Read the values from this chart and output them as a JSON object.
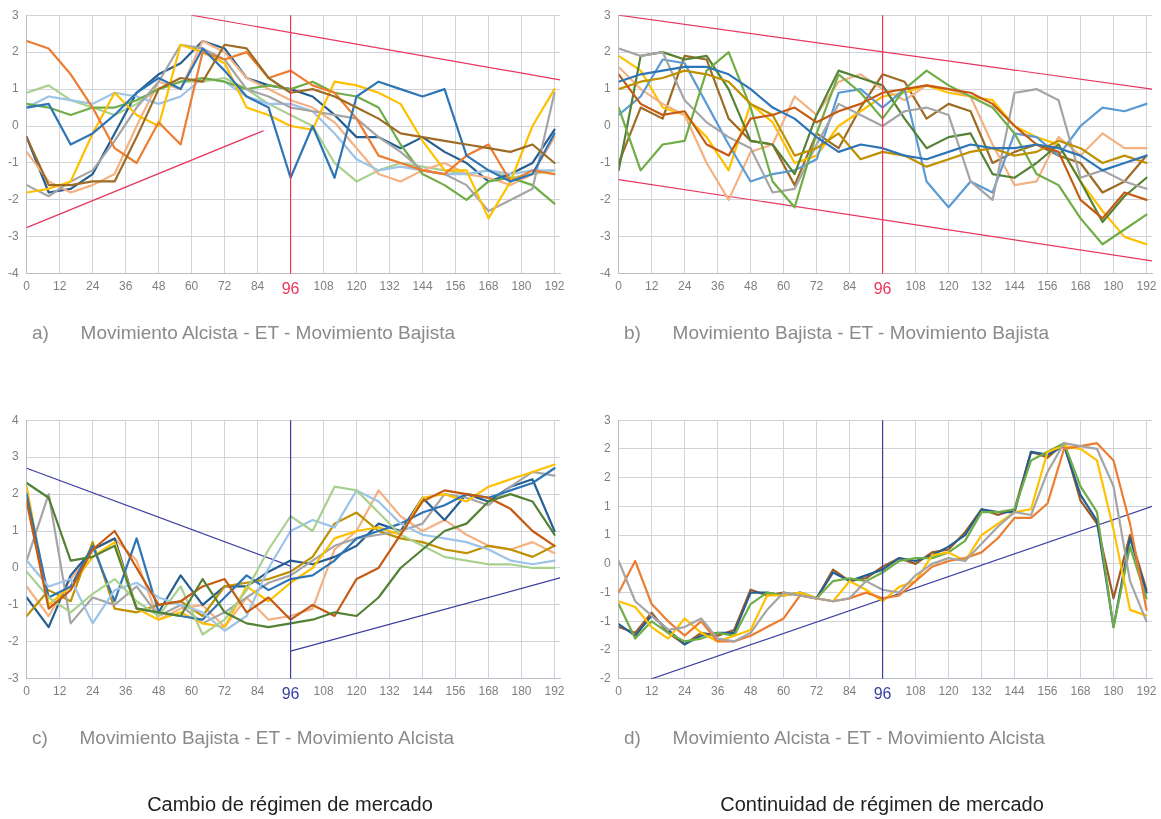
{
  "chart_data": [
    {
      "type": "line",
      "xlabel": "a)      Movimiento Alcista - ET - Movimiento Bajista",
      "legend": false,
      "grid": true,
      "marker": "none",
      "x": [
        0,
        8,
        16,
        24,
        32,
        40,
        48,
        56,
        64,
        72,
        80,
        88,
        96,
        104,
        112,
        120,
        128,
        136,
        144,
        152,
        160,
        168,
        176,
        184,
        192
      ],
      "xlim": [
        0,
        194
      ],
      "ylim": [
        -4,
        3
      ],
      "xticks": [
        0,
        12,
        24,
        36,
        48,
        60,
        72,
        84,
        96,
        108,
        120,
        132,
        144,
        156,
        168,
        180,
        192
      ],
      "yticks": [
        -4,
        -3,
        -2,
        -1,
        0,
        1,
        2,
        3
      ],
      "ref_lines": [
        {
          "axis": "x",
          "value": 96,
          "color": "#e8365d"
        }
      ],
      "series": [
        {
          "color": "#9e6b25",
          "values": [
            -0.3,
            -1.6,
            -1.6,
            -1.5,
            -1.5,
            -0.3,
            1.0,
            1.3,
            1.2,
            2.2,
            2.1,
            1.3,
            0.9,
            1.0,
            0.8,
            0.5,
            0.2,
            -0.2,
            -0.3,
            -0.4,
            -0.5,
            -0.6,
            -0.7,
            -0.5,
            -1.0
          ]
        },
        {
          "color": "#2e75b6",
          "values": [
            0.5,
            0.6,
            -0.5,
            -0.2,
            0.3,
            0.9,
            1.3,
            1.0,
            2.1,
            1.5,
            0.8,
            0.5,
            -1.4,
            0,
            -1.4,
            0.8,
            1.2,
            1.0,
            0.8,
            1.0,
            -0.8,
            -1.2,
            -1.5,
            -1.3,
            -0.2
          ]
        },
        {
          "color": "#ed7d31",
          "values": [
            2.3,
            2.1,
            1.4,
            0.5,
            -0.6,
            -1.0,
            0.1,
            -0.5,
            2.0,
            1.8,
            2.0,
            1.3,
            1.5,
            1.1,
            0.9,
            0.2,
            -0.8,
            -1.0,
            -1.2,
            -1.3,
            -0.8,
            -0.5,
            -1.5,
            -1.2,
            -1.3
          ]
        },
        {
          "color": "#ffc000",
          "values": [
            -1.8,
            -1.7,
            -1.5,
            -0.2,
            0.9,
            0.3,
            0.0,
            2.2,
            2.0,
            1.7,
            0.5,
            0.3,
            0.0,
            -0.1,
            1.2,
            1.1,
            0.9,
            0.6,
            -0.4,
            -1.2,
            -1.2,
            -2.5,
            -1.5,
            0.0,
            1.0
          ]
        },
        {
          "color": "#a5a5a5",
          "values": [
            -1.6,
            -1.9,
            -1.5,
            -1.2,
            -0.4,
            0.5,
            1.2,
            2.2,
            2.1,
            1.8,
            1.0,
            0.8,
            0.5,
            0.4,
            0.3,
            0.2,
            -0.3,
            -0.7,
            -1.2,
            -1.3,
            -1.6,
            -2.3,
            -2.0,
            -1.7,
            0.9
          ]
        },
        {
          "color": "#70ad47",
          "values": [
            0.6,
            0.5,
            0.3,
            0.5,
            0.5,
            0.7,
            1.0,
            1.2,
            1.3,
            1.2,
            1.0,
            1.1,
            1.0,
            1.2,
            0.9,
            0.8,
            0.5,
            -0.5,
            -1.3,
            -1.6,
            -2.0,
            -1.5,
            -1.4,
            -1.6,
            -2.1
          ]
        },
        {
          "color": "#9dc3e6",
          "values": [
            0.5,
            0.8,
            0.7,
            0.6,
            0.9,
            0.8,
            0.6,
            0.8,
            1.3,
            1.2,
            0.8,
            0.6,
            0.6,
            0.4,
            -0.2,
            -0.9,
            -1.2,
            -1.1,
            -1.2,
            -1.3,
            -1.3,
            -1.2,
            -1.3,
            -1.2,
            -1.2
          ]
        },
        {
          "color": "#f4b183",
          "values": [
            -0.7,
            -1.5,
            -1.8,
            -1.6,
            -1.3,
            0.0,
            1.2,
            1.0,
            2.3,
            2.0,
            1.3,
            1.0,
            0.7,
            0.5,
            0.1,
            -0.6,
            -1.3,
            -1.5,
            -1.2,
            -1.0,
            -1.3,
            -1.4,
            -1.6,
            -1.3,
            -0.3
          ]
        },
        {
          "color": "#255e91",
          "values": [
            -0.3,
            -1.8,
            -1.7,
            -1.3,
            -0.2,
            0.9,
            1.4,
            1.7,
            2.3,
            2.1,
            1.3,
            1.1,
            1.0,
            0.8,
            0.3,
            -0.3,
            -0.3,
            -0.6,
            -0.3,
            -0.7,
            -1.0,
            -1.5,
            -1.3,
            -1.0,
            -0.1
          ]
        },
        {
          "color": "#a9d18e",
          "values": [
            0.9,
            1.1,
            0.7,
            0.5,
            0.3,
            0.6,
            1.0,
            1.2,
            1.2,
            1.3,
            1.0,
            0.6,
            0.3,
            0.0,
            -1.0,
            -1.5,
            -1.2,
            -1.0,
            -1.1,
            -1.2,
            -1.3,
            -1.2,
            -1.4,
            -1.3,
            -1.2
          ]
        },
        {
          "type": "line",
          "color": "#e8365d",
          "x": [
            60,
            194
          ],
          "values": [
            3,
            1.25
          ]
        },
        {
          "type": "line",
          "color": "#e8365d",
          "x": [
            0,
            86
          ],
          "values": [
            -2.75,
            -0.13
          ]
        }
      ]
    },
    {
      "type": "line",
      "xlabel": "b)      Movimiento Bajista - ET - Movimiento Bajista",
      "legend": false,
      "grid": true,
      "marker": "none",
      "x": [
        0,
        8,
        16,
        24,
        32,
        40,
        48,
        56,
        64,
        72,
        80,
        88,
        96,
        104,
        112,
        120,
        128,
        136,
        144,
        152,
        160,
        168,
        176,
        184,
        192
      ],
      "xlim": [
        0,
        194
      ],
      "ylim": [
        -4,
        3
      ],
      "xticks": [
        0,
        12,
        24,
        36,
        48,
        60,
        72,
        84,
        96,
        108,
        120,
        132,
        144,
        156,
        168,
        180,
        192
      ],
      "yticks": [
        -4,
        -3,
        -2,
        -1,
        0,
        1,
        2,
        3
      ],
      "ref_lines": [
        {
          "axis": "x",
          "value": 96,
          "color": "#e8365d"
        }
      ],
      "series": [
        {
          "color": "#2e75b6",
          "values": [
            1.2,
            1.4,
            1.5,
            1.6,
            1.6,
            1.4,
            1.0,
            0.5,
            0.2,
            -0.3,
            -0.7,
            -0.5,
            -0.6,
            -0.8,
            -0.9,
            -0.7,
            -0.5,
            -0.6,
            -0.6,
            -0.5,
            -0.6,
            -0.8,
            -1.2,
            -1.0,
            -0.8
          ]
        },
        {
          "color": "#c55a11",
          "values": [
            1.4,
            0.6,
            0.3,
            0.4,
            -0.5,
            -0.8,
            0.2,
            0.3,
            0.5,
            0.1,
            0.4,
            0.6,
            0.9,
            1.0,
            1.1,
            1.0,
            0.9,
            0.6,
            0.0,
            -0.5,
            -0.7,
            -2.0,
            -2.5,
            -1.8,
            -2.0
          ]
        },
        {
          "color": "#bf9000",
          "values": [
            1.0,
            1.2,
            1.3,
            1.5,
            1.4,
            1.2,
            0.6,
            0.3,
            -0.8,
            -0.6,
            -0.2,
            -0.9,
            -0.7,
            -0.8,
            -1.1,
            -0.9,
            -0.7,
            -0.6,
            -0.8,
            -0.7,
            -0.4,
            -0.6,
            -1.0,
            -0.8,
            -1.0
          ]
        },
        {
          "color": "#70ad47",
          "values": [
            0.5,
            -1.2,
            -0.5,
            -0.4,
            1.5,
            2.0,
            0.5,
            -1.5,
            -2.2,
            -0.2,
            1.4,
            0.9,
            0.2,
            1.0,
            1.5,
            1.1,
            0.8,
            0.5,
            -0.2,
            -1.3,
            -1.6,
            -2.5,
            -3.2,
            -2.8,
            -2.4
          ]
        },
        {
          "color": "#a5a5a5",
          "values": [
            2.1,
            1.9,
            2.0,
            0.7,
            0.1,
            -0.3,
            -0.6,
            -1.8,
            -1.7,
            -0.5,
            0.6,
            0.3,
            0.0,
            0.4,
            0.5,
            0.3,
            -1.5,
            -2.0,
            0.9,
            1.0,
            0.7,
            -1.4,
            -1.2,
            -1.5,
            -1.7
          ]
        },
        {
          "color": "#548235",
          "values": [
            -1.2,
            1.9,
            2.0,
            1.8,
            1.9,
            1.0,
            -0.4,
            -0.5,
            -1.3,
            0.3,
            1.5,
            1.3,
            1.1,
            0.2,
            -0.6,
            -0.3,
            -0.2,
            -1.3,
            -1.4,
            -1.0,
            -0.5,
            -1.5,
            -2.6,
            -1.9,
            -1.4
          ]
        },
        {
          "color": "#5b9bd5",
          "values": [
            0.3,
            0.8,
            1.8,
            1.7,
            0.6,
            -0.5,
            -1.5,
            -1.3,
            -1.2,
            -0.9,
            0.9,
            1.0,
            0.5,
            1.0,
            -1.5,
            -2.2,
            -1.5,
            -1.8,
            -0.2,
            -0.3,
            -0.8,
            0.0,
            0.5,
            0.4,
            0.6
          ]
        },
        {
          "color": "#f4b183",
          "values": [
            1.6,
            1.0,
            0.6,
            0.3,
            -1.0,
            -2.0,
            -0.7,
            -0.5,
            0.8,
            0.3,
            1.2,
            1.4,
            1.0,
            0.7,
            1.1,
            1.0,
            0.8,
            -0.5,
            -1.6,
            -1.5,
            -0.3,
            -0.8,
            -0.2,
            -0.6,
            -0.6
          ]
        },
        {
          "color": "#ffc000",
          "values": [
            1.9,
            1.5,
            0.5,
            0.3,
            -0.3,
            -1.2,
            0.6,
            0.1,
            -1.0,
            -0.8,
            0.0,
            0.4,
            0.8,
            0.9,
            1.1,
            0.9,
            0.8,
            0.7,
            0.0,
            -0.3,
            -0.5,
            -1.5,
            -2.3,
            -3.0,
            -3.2
          ]
        },
        {
          "color": "#9e6b25",
          "values": [
            -1.0,
            0.5,
            0.2,
            1.9,
            1.8,
            0.2,
            -0.4,
            -0.5,
            -1.6,
            -0.2,
            -0.6,
            0.5,
            1.4,
            1.2,
            0.2,
            0.6,
            0.4,
            -1.0,
            -0.7,
            -0.5,
            -0.8,
            -1.0,
            -1.8,
            -1.5,
            -0.8
          ]
        },
        {
          "type": "line",
          "color": "#e8365d",
          "x": [
            0,
            194
          ],
          "values": [
            3,
            1.0
          ]
        },
        {
          "type": "line",
          "color": "#e8365d",
          "x": [
            0,
            194
          ],
          "values": [
            -1.45,
            -3.65
          ]
        }
      ]
    },
    {
      "type": "line",
      "xlabel": "c)      Movimiento Bajista - ET - Movimiento Alcista",
      "legend": false,
      "grid": true,
      "marker": "none",
      "annotations": [
        "Cambio de régimen de mercado"
      ],
      "x": [
        0,
        8,
        16,
        24,
        32,
        40,
        48,
        56,
        64,
        72,
        80,
        88,
        96,
        104,
        112,
        120,
        128,
        136,
        144,
        152,
        160,
        168,
        176,
        184,
        192
      ],
      "xlim": [
        0,
        194
      ],
      "ylim": [
        -3,
        4
      ],
      "xticks": [
        0,
        12,
        24,
        36,
        48,
        60,
        72,
        84,
        96,
        108,
        120,
        132,
        144,
        156,
        168,
        180,
        192
      ],
      "yticks": [
        -3,
        -2,
        -1,
        0,
        1,
        2,
        3,
        4
      ],
      "ref_lines": [
        {
          "axis": "x",
          "value": 96,
          "color": "#3b3f9e"
        }
      ],
      "series": [
        {
          "color": "#548235",
          "values": [
            2.3,
            1.9,
            0.2,
            0.3,
            0.6,
            -1.1,
            -1.2,
            -1.3,
            -0.3,
            -1.2,
            -1.5,
            -1.6,
            -1.5,
            -1.4,
            -1.2,
            -1.3,
            -0.8,
            0.0,
            0.5,
            1.0,
            1.2,
            1.8,
            2.0,
            1.8,
            0.9
          ]
        },
        {
          "color": "#c55a11",
          "values": [
            1.8,
            -1.1,
            -0.6,
            0.5,
            1.0,
            0.0,
            -1.0,
            -0.9,
            -0.5,
            -0.3,
            -1.2,
            -0.8,
            -1.4,
            -1.0,
            -1.3,
            -0.3,
            0.0,
            0.9,
            1.8,
            2.1,
            2.0,
            1.9,
            1.6,
            1.0,
            0.6
          ]
        },
        {
          "color": "#a9d18e",
          "values": [
            -0.1,
            -0.8,
            -1.2,
            -0.7,
            -0.3,
            -0.9,
            -1.3,
            -0.5,
            -1.8,
            -1.4,
            -0.6,
            0.5,
            1.4,
            1.0,
            2.2,
            2.1,
            1.5,
            0.9,
            0.6,
            0.3,
            0.2,
            0.1,
            0.1,
            0.0,
            0.0
          ]
        },
        {
          "color": "#9dc3e6",
          "values": [
            0.2,
            -0.5,
            -0.3,
            -1.5,
            -0.6,
            -0.4,
            -0.8,
            -1.0,
            -1.2,
            -1.7,
            -1.3,
            0.0,
            1.0,
            1.3,
            1.1,
            2.1,
            1.8,
            1.2,
            0.9,
            0.8,
            0.7,
            0.5,
            0.2,
            0.1,
            0.2
          ]
        },
        {
          "color": "#2e75b6",
          "values": [
            2.0,
            -0.8,
            -0.5,
            0.6,
            -0.9,
            0.8,
            -1.2,
            -1.3,
            -1.4,
            -0.8,
            -0.2,
            -0.6,
            -0.3,
            -0.2,
            0.2,
            0.8,
            1.0,
            1.2,
            1.5,
            1.7,
            2.0,
            1.9,
            2.1,
            2.3,
            2.7
          ]
        },
        {
          "color": "#ffc000",
          "values": [
            2.2,
            -1.0,
            -0.5,
            0.3,
            0.7,
            -1.1,
            -1.4,
            -1.2,
            -1.5,
            -1.6,
            -0.5,
            -0.9,
            -0.4,
            0.0,
            0.8,
            1.0,
            1.1,
            0.9,
            1.9,
            2.0,
            1.8,
            2.2,
            2.4,
            2.6,
            2.8
          ]
        },
        {
          "color": "#a5a5a5",
          "values": [
            0.2,
            2.0,
            -1.5,
            -0.8,
            -1.0,
            -0.5,
            -1.3,
            -1.0,
            -1.5,
            -1.2,
            -0.8,
            -0.4,
            -0.2,
            0.2,
            0.6,
            0.8,
            0.9,
            1.0,
            1.2,
            2.0,
            1.9,
            1.7,
            2.2,
            2.6,
            2.5
          ]
        },
        {
          "color": "#bf9000",
          "values": [
            -1.3,
            -0.6,
            -0.9,
            0.7,
            -1.1,
            -1.2,
            -1.0,
            -0.9,
            -1.3,
            -0.5,
            -0.4,
            -0.3,
            -0.1,
            0.3,
            1.2,
            1.5,
            1.0,
            0.8,
            0.7,
            0.5,
            0.4,
            0.6,
            0.5,
            0.3,
            0.6
          ]
        },
        {
          "color": "#255e91",
          "values": [
            -0.8,
            -1.6,
            -0.2,
            0.5,
            0.8,
            -1.1,
            -1.2,
            -0.2,
            -1.0,
            -0.5,
            -0.5,
            -0.1,
            0.2,
            0.1,
            0.3,
            0.6,
            1.2,
            1.0,
            1.9,
            1.3,
            2.0,
            1.8,
            2.2,
            2.4,
            1.0
          ]
        },
        {
          "color": "#f4b183",
          "values": [
            -0.5,
            -1.3,
            -0.3,
            0.5,
            0.8,
            0.2,
            -1.4,
            -1.1,
            -1.0,
            -1.6,
            -0.8,
            -1.4,
            -1.3,
            -1.1,
            0.5,
            1.0,
            2.1,
            1.4,
            1.0,
            1.3,
            0.9,
            0.6,
            0.5,
            0.7,
            0.4
          ]
        },
        {
          "type": "line",
          "color": "#3b3f9e",
          "x": [
            0,
            96
          ],
          "values": [
            2.7,
            0.05
          ]
        },
        {
          "type": "line",
          "color": "#3b3f9e",
          "x": [
            96,
            194
          ],
          "values": [
            -2.25,
            -0.27
          ]
        }
      ]
    },
    {
      "type": "line",
      "xlabel": "d)      Movimiento Alcista - ET - Movimiento Alcista",
      "legend": false,
      "grid": true,
      "marker": "none",
      "annotations": [
        "Continuidad de régimen de mercado"
      ],
      "x": [
        0,
        6,
        12,
        18,
        24,
        30,
        36,
        42,
        48,
        54,
        60,
        66,
        72,
        78,
        84,
        90,
        96,
        102,
        108,
        114,
        120,
        126,
        132,
        138,
        144,
        150,
        156,
        162,
        168,
        174,
        180,
        186,
        192
      ],
      "xlim": [
        0,
        194
      ],
      "ylim": [
        -2,
        2.5
      ],
      "xticks": [
        0,
        12,
        24,
        36,
        48,
        60,
        72,
        84,
        96,
        108,
        120,
        132,
        144,
        156,
        168,
        180,
        192
      ],
      "yticks": [
        {
          "value": -2,
          "label": "-2"
        },
        {
          "value": -1.5,
          "label": "-2"
        },
        {
          "value": -1,
          "label": "-1"
        },
        {
          "value": -0.5,
          "label": "-1"
        },
        {
          "value": 0,
          "label": "0"
        },
        {
          "value": 0.5,
          "label": "1"
        },
        {
          "value": 1,
          "label": "1"
        },
        {
          "value": 1.5,
          "label": "2"
        },
        {
          "value": 2,
          "label": "2"
        },
        {
          "value": 2.5,
          "label": "3"
        }
      ],
      "ref_lines": [
        {
          "axis": "x",
          "value": 96,
          "color": "#3b3f9e"
        }
      ],
      "series": [
        {
          "color": "#a5a5a5",
          "values": [
            0.05,
            -0.65,
            -0.9,
            -1.15,
            -1.1,
            -0.95,
            -1.3,
            -1.35,
            -1.2,
            -0.8,
            -0.5,
            -0.55,
            -0.6,
            -0.65,
            -0.6,
            -0.3,
            -0.45,
            -0.5,
            -0.2,
            0,
            0.1,
            0.05,
            0.35,
            0.65,
            0.9,
            0.85,
            1.6,
            2.1,
            2.05,
            2.0,
            1.35,
            -0.3,
            -1.0
          ]
        },
        {
          "color": "#ed7d31",
          "values": [
            -0.5,
            0.05,
            -0.7,
            -1.0,
            -1.25,
            -1.0,
            -1.35,
            -1.35,
            -1.25,
            -1.1,
            -0.95,
            -0.55,
            -0.6,
            -0.65,
            -0.6,
            -0.5,
            -0.6,
            -0.55,
            -0.3,
            -0.05,
            0.05,
            0.1,
            0.2,
            0.45,
            0.8,
            0.8,
            1.05,
            2.0,
            2.05,
            2.1,
            1.8,
            0.7,
            -0.8
          ]
        },
        {
          "color": "#ffc000",
          "values": [
            -0.65,
            -0.75,
            -1.1,
            -1.3,
            -0.95,
            -1.2,
            -1.35,
            -1.25,
            -1.15,
            -0.55,
            -0.55,
            -0.5,
            -0.6,
            -0.65,
            -0.3,
            -0.45,
            -0.65,
            -0.4,
            -0.3,
            0.15,
            0.2,
            0.05,
            0.5,
            0.7,
            0.9,
            0.95,
            1.95,
            2.05,
            2.0,
            1.8,
            0.6,
            -0.8,
            -0.9
          ]
        },
        {
          "color": "#70ad47",
          "values": [
            -0.7,
            -1.3,
            -1.0,
            -1.2,
            -1.35,
            -1.3,
            -1.2,
            -1.25,
            -0.7,
            -0.5,
            -0.55,
            -0.5,
            -0.6,
            -0.3,
            -0.25,
            -0.3,
            -0.15,
            0.05,
            0.1,
            0.1,
            0.2,
            0.4,
            0.9,
            0.9,
            0.95,
            1.8,
            1.95,
            2.1,
            1.35,
            0.9,
            -1.1,
            0.3,
            -0.6
          ]
        },
        {
          "color": "#255e91",
          "values": [
            -1.05,
            -1.25,
            -0.9,
            -1.15,
            -1.4,
            -1.25,
            -1.2,
            -1.2,
            -0.5,
            -0.5,
            -0.55,
            -0.5,
            -0.6,
            -0.15,
            -0.3,
            -0.2,
            -0.1,
            0.1,
            0.05,
            0.15,
            0.3,
            0.5,
            0.95,
            0.9,
            0.9,
            1.95,
            1.9,
            2.05,
            1.2,
            0.75,
            -1.1,
            0.45,
            -0.5
          ]
        },
        {
          "color": "#9e5a25",
          "values": [
            -1.1,
            -1.2,
            -0.85,
            -1.2,
            -1.4,
            -1.2,
            -1.25,
            -1.15,
            -0.45,
            -0.55,
            -0.5,
            -0.55,
            -0.6,
            -0.1,
            -0.3,
            -0.25,
            -0.05,
            0.1,
            0,
            0.2,
            0.25,
            0.55,
            0.95,
            0.85,
            0.95,
            1.95,
            1.85,
            2.1,
            1.1,
            0.7,
            -0.6,
            0.5,
            -0.45
          ]
        },
        {
          "type": "line",
          "color": "#3b3f9e",
          "x": [
            12,
            194
          ],
          "values": [
            -2,
            1.0
          ]
        }
      ]
    }
  ]
}
